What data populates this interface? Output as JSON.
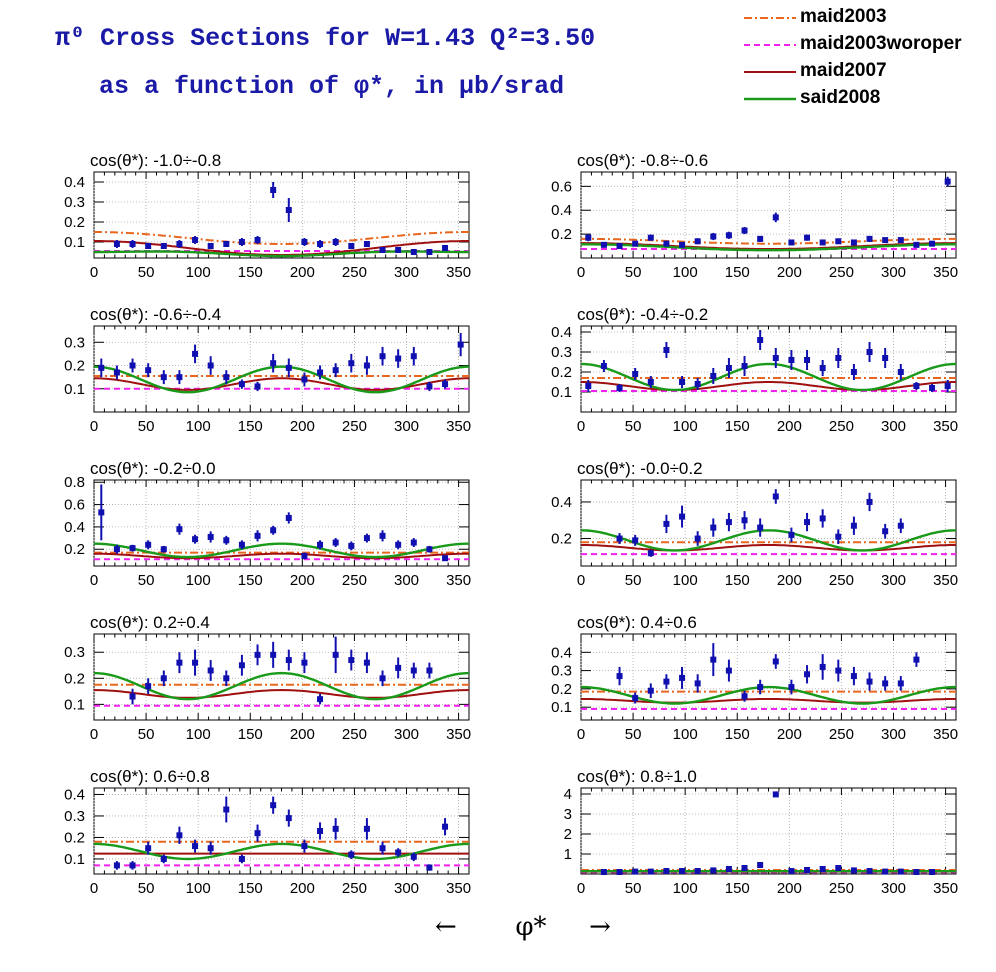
{
  "header": {
    "title_line1": "π⁰ Cross Sections for W=1.43  Q²=3.50",
    "title_line2": "as a function of φ*, in μb/srad"
  },
  "legend": [
    {
      "name": "maid2003",
      "color": "#e8661e",
      "style": "dashdot"
    },
    {
      "name": "maid2003woroper",
      "color": "#ee22ee",
      "style": "dash"
    },
    {
      "name": "maid2007",
      "color": "#a01010",
      "style": "solid"
    },
    {
      "name": "said2008",
      "color": "#1a9a1a",
      "style": "solid"
    }
  ],
  "xaxis": {
    "label": "φ*",
    "left_arrow": "←",
    "right_arrow": "→"
  },
  "chart_data": [
    {
      "type": "scatter",
      "title": "cos(θ*): -1.0÷-0.8",
      "xlim": [
        0,
        360
      ],
      "ylim": [
        0.02,
        0.45
      ],
      "xticks": [
        0,
        50,
        100,
        150,
        200,
        250,
        300,
        350
      ],
      "yticks": [
        0.1,
        0.2,
        0.3,
        0.4
      ],
      "x": [
        22,
        37,
        52,
        67,
        82,
        97,
        112,
        127,
        142,
        157,
        172,
        187,
        202,
        217,
        232,
        247,
        262,
        277,
        292,
        307,
        322,
        337
      ],
      "y": [
        0.09,
        0.09,
        0.08,
        0.08,
        0.09,
        0.11,
        0.08,
        0.09,
        0.1,
        0.11,
        0.36,
        0.26,
        0.1,
        0.09,
        0.1,
        0.08,
        0.09,
        0.06,
        0.06,
        0.05,
        0.05,
        0.07
      ],
      "err": [
        0.02,
        0.02,
        0.015,
        0.015,
        0.02,
        0.02,
        0.015,
        0.015,
        0.02,
        0.02,
        0.04,
        0.06,
        0.02,
        0.02,
        0.02,
        0.015,
        0.015,
        0.01,
        0.01,
        0.01,
        0.01,
        0.015
      ],
      "models": [
        {
          "c": 0.12,
          "a": 0.03,
          "b": 0.0
        },
        {
          "c": 0.055,
          "a": 0.0,
          "b": 0.0
        },
        {
          "c": 0.07,
          "a": 0.035,
          "b": 0.0
        },
        {
          "c": 0.045,
          "a": 0.01,
          "b": -0.005
        }
      ]
    },
    {
      "type": "scatter",
      "title": "cos(θ*): -0.8÷-0.6",
      "xlim": [
        0,
        360
      ],
      "ylim": [
        0.0,
        0.72
      ],
      "xticks": [
        0,
        50,
        100,
        150,
        200,
        250,
        300,
        350
      ],
      "yticks": [
        0.2,
        0.4,
        0.6
      ],
      "x": [
        7,
        22,
        37,
        52,
        67,
        82,
        97,
        112,
        127,
        142,
        157,
        172,
        187,
        202,
        217,
        232,
        247,
        262,
        277,
        292,
        307,
        322,
        337,
        352
      ],
      "y": [
        0.17,
        0.11,
        0.1,
        0.12,
        0.17,
        0.12,
        0.11,
        0.14,
        0.18,
        0.19,
        0.23,
        0.16,
        0.34,
        0.13,
        0.17,
        0.13,
        0.14,
        0.13,
        0.16,
        0.15,
        0.15,
        0.11,
        0.12,
        0.64
      ],
      "err": [
        0.03,
        0.02,
        0.02,
        0.02,
        0.025,
        0.02,
        0.02,
        0.025,
        0.03,
        0.03,
        0.03,
        0.025,
        0.04,
        0.02,
        0.025,
        0.02,
        0.02,
        0.02,
        0.025,
        0.02,
        0.02,
        0.02,
        0.02,
        0.04
      ],
      "models": [
        {
          "c": 0.14,
          "a": 0.02,
          "b": 0.0
        },
        {
          "c": 0.075,
          "a": 0.0,
          "b": 0.0
        },
        {
          "c": 0.1,
          "a": 0.025,
          "b": 0.0
        },
        {
          "c": 0.09,
          "a": 0.025,
          "b": 0.0
        }
      ]
    },
    {
      "type": "scatter",
      "title": "cos(θ*): -0.6÷-0.4",
      "xlim": [
        0,
        360
      ],
      "ylim": [
        0.0,
        0.37
      ],
      "xticks": [
        0,
        50,
        100,
        150,
        200,
        250,
        300,
        350
      ],
      "yticks": [
        0.1,
        0.2,
        0.3
      ],
      "x": [
        7,
        22,
        37,
        52,
        67,
        82,
        97,
        112,
        127,
        142,
        157,
        172,
        187,
        202,
        217,
        232,
        247,
        262,
        277,
        292,
        307,
        322,
        337,
        352
      ],
      "y": [
        0.19,
        0.17,
        0.2,
        0.18,
        0.15,
        0.15,
        0.25,
        0.2,
        0.15,
        0.12,
        0.11,
        0.21,
        0.19,
        0.14,
        0.17,
        0.18,
        0.21,
        0.2,
        0.24,
        0.23,
        0.24,
        0.11,
        0.12,
        0.29
      ],
      "err": [
        0.04,
        0.03,
        0.03,
        0.03,
        0.03,
        0.03,
        0.04,
        0.04,
        0.03,
        0.02,
        0.02,
        0.04,
        0.04,
        0.03,
        0.03,
        0.03,
        0.04,
        0.04,
        0.04,
        0.04,
        0.04,
        0.02,
        0.02,
        0.05
      ],
      "models": [
        {
          "c": 0.155,
          "a": 0.0,
          "b": 0.0
        },
        {
          "c": 0.1,
          "a": 0.0,
          "b": 0.0
        },
        {
          "c": 0.12,
          "a": 0.0,
          "b": 0.025
        },
        {
          "c": 0.14,
          "a": 0.0,
          "b": 0.055
        }
      ]
    },
    {
      "type": "scatter",
      "title": "cos(θ*): -0.4÷-0.2",
      "xlim": [
        0,
        360
      ],
      "ylim": [
        0.0,
        0.43
      ],
      "xticks": [
        0,
        50,
        100,
        150,
        200,
        250,
        300,
        350
      ],
      "yticks": [
        0.1,
        0.2,
        0.3,
        0.4
      ],
      "x": [
        7,
        22,
        37,
        52,
        67,
        82,
        97,
        112,
        127,
        142,
        157,
        172,
        187,
        202,
        217,
        232,
        247,
        262,
        277,
        292,
        307,
        322,
        337,
        352
      ],
      "y": [
        0.13,
        0.23,
        0.12,
        0.19,
        0.15,
        0.31,
        0.15,
        0.14,
        0.18,
        0.22,
        0.23,
        0.36,
        0.27,
        0.26,
        0.26,
        0.22,
        0.27,
        0.2,
        0.3,
        0.27,
        0.2,
        0.13,
        0.12,
        0.13
      ],
      "err": [
        0.03,
        0.03,
        0.02,
        0.03,
        0.03,
        0.04,
        0.03,
        0.03,
        0.04,
        0.05,
        0.05,
        0.05,
        0.05,
        0.05,
        0.05,
        0.04,
        0.05,
        0.04,
        0.05,
        0.05,
        0.04,
        0.02,
        0.02,
        0.03
      ],
      "models": [
        {
          "c": 0.17,
          "a": 0.0,
          "b": 0.0
        },
        {
          "c": 0.105,
          "a": 0.0,
          "b": 0.0
        },
        {
          "c": 0.13,
          "a": 0.0,
          "b": 0.02
        },
        {
          "c": 0.175,
          "a": 0.0,
          "b": 0.065
        }
      ]
    },
    {
      "type": "scatter",
      "title": "cos(θ*): -0.2÷0.0",
      "xlim": [
        0,
        360
      ],
      "ylim": [
        0.05,
        0.82
      ],
      "xticks": [
        0,
        50,
        100,
        150,
        200,
        250,
        300,
        350
      ],
      "yticks": [
        0.2,
        0.4,
        0.6,
        0.8
      ],
      "x": [
        7,
        22,
        37,
        52,
        67,
        82,
        97,
        112,
        127,
        142,
        157,
        172,
        187,
        202,
        217,
        232,
        247,
        262,
        277,
        292,
        307,
        322,
        337
      ],
      "y": [
        0.53,
        0.2,
        0.21,
        0.24,
        0.2,
        0.38,
        0.29,
        0.31,
        0.28,
        0.24,
        0.32,
        0.37,
        0.48,
        0.14,
        0.24,
        0.26,
        0.23,
        0.3,
        0.32,
        0.24,
        0.26,
        0.2,
        0.12
      ],
      "err": [
        0.25,
        0.04,
        0.03,
        0.04,
        0.03,
        0.05,
        0.04,
        0.05,
        0.04,
        0.04,
        0.05,
        0.04,
        0.05,
        0.03,
        0.04,
        0.04,
        0.04,
        0.04,
        0.05,
        0.04,
        0.04,
        0.03,
        0.02
      ],
      "models": [
        {
          "c": 0.17,
          "a": 0.0,
          "b": 0.0
        },
        {
          "c": 0.11,
          "a": 0.0,
          "b": 0.0
        },
        {
          "c": 0.14,
          "a": 0.0,
          "b": 0.02
        },
        {
          "c": 0.19,
          "a": 0.0,
          "b": 0.06
        }
      ]
    },
    {
      "type": "scatter",
      "title": "cos(θ*): -0.0÷0.2",
      "xlim": [
        0,
        360
      ],
      "ylim": [
        0.05,
        0.52
      ],
      "xticks": [
        0,
        50,
        100,
        150,
        200,
        250,
        300,
        350
      ],
      "yticks": [
        0.2,
        0.4
      ],
      "x": [
        37,
        52,
        67,
        82,
        97,
        112,
        127,
        142,
        157,
        172,
        187,
        202,
        217,
        232,
        247,
        262,
        277,
        292,
        307
      ],
      "y": [
        0.2,
        0.19,
        0.12,
        0.28,
        0.32,
        0.2,
        0.26,
        0.29,
        0.3,
        0.26,
        0.43,
        0.22,
        0.29,
        0.31,
        0.21,
        0.27,
        0.4,
        0.24,
        0.27
      ],
      "err": [
        0.03,
        0.03,
        0.02,
        0.05,
        0.06,
        0.04,
        0.05,
        0.05,
        0.05,
        0.05,
        0.04,
        0.04,
        0.05,
        0.05,
        0.04,
        0.05,
        0.05,
        0.04,
        0.04
      ],
      "models": [
        {
          "c": 0.18,
          "a": 0.0,
          "b": 0.0
        },
        {
          "c": 0.115,
          "a": 0.0,
          "b": 0.0
        },
        {
          "c": 0.15,
          "a": 0.0,
          "b": 0.015
        },
        {
          "c": 0.19,
          "a": 0.0,
          "b": 0.055
        }
      ]
    },
    {
      "type": "scatter",
      "title": "cos(θ*): 0.2÷0.4",
      "xlim": [
        0,
        360
      ],
      "ylim": [
        0.04,
        0.37
      ],
      "xticks": [
        0,
        50,
        100,
        150,
        200,
        250,
        300,
        350
      ],
      "yticks": [
        0.1,
        0.2,
        0.3
      ],
      "x": [
        37,
        52,
        67,
        82,
        97,
        112,
        127,
        142,
        157,
        172,
        187,
        202,
        217,
        232,
        247,
        262,
        277,
        292,
        307,
        322
      ],
      "y": [
        0.13,
        0.17,
        0.2,
        0.26,
        0.26,
        0.23,
        0.2,
        0.25,
        0.29,
        0.29,
        0.27,
        0.26,
        0.12,
        0.29,
        0.27,
        0.26,
        0.2,
        0.24,
        0.23,
        0.23
      ],
      "err": [
        0.03,
        0.03,
        0.03,
        0.04,
        0.05,
        0.04,
        0.03,
        0.04,
        0.04,
        0.05,
        0.04,
        0.04,
        0.02,
        0.07,
        0.04,
        0.04,
        0.03,
        0.04,
        0.03,
        0.03
      ],
      "models": [
        {
          "c": 0.175,
          "a": 0.0,
          "b": 0.0
        },
        {
          "c": 0.095,
          "a": 0.0,
          "b": 0.0
        },
        {
          "c": 0.14,
          "a": 0.0,
          "b": 0.015
        },
        {
          "c": 0.17,
          "a": 0.0,
          "b": 0.05
        }
      ]
    },
    {
      "type": "scatter",
      "title": "cos(θ*): 0.4÷0.6",
      "xlim": [
        0,
        360
      ],
      "ylim": [
        0.03,
        0.5
      ],
      "xticks": [
        0,
        50,
        100,
        150,
        200,
        250,
        300,
        350
      ],
      "yticks": [
        0.1,
        0.2,
        0.3,
        0.4
      ],
      "x": [
        37,
        52,
        67,
        82,
        97,
        112,
        127,
        142,
        157,
        172,
        187,
        202,
        217,
        232,
        247,
        262,
        277,
        292,
        307,
        322
      ],
      "y": [
        0.27,
        0.15,
        0.19,
        0.24,
        0.26,
        0.23,
        0.36,
        0.3,
        0.16,
        0.21,
        0.35,
        0.21,
        0.28,
        0.32,
        0.3,
        0.27,
        0.24,
        0.23,
        0.23,
        0.36
      ],
      "err": [
        0.05,
        0.03,
        0.04,
        0.04,
        0.06,
        0.05,
        0.09,
        0.06,
        0.03,
        0.04,
        0.04,
        0.04,
        0.05,
        0.07,
        0.06,
        0.05,
        0.05,
        0.04,
        0.04,
        0.04
      ],
      "models": [
        {
          "c": 0.185,
          "a": 0.0,
          "b": 0.0
        },
        {
          "c": 0.09,
          "a": 0.0,
          "b": 0.0
        },
        {
          "c": 0.135,
          "a": 0.0,
          "b": 0.01
        },
        {
          "c": 0.165,
          "a": 0.0,
          "b": 0.045
        }
      ]
    },
    {
      "type": "scatter",
      "title": "cos(θ*): 0.6÷0.8",
      "xlim": [
        0,
        360
      ],
      "ylim": [
        0.03,
        0.43
      ],
      "xticks": [
        0,
        50,
        100,
        150,
        200,
        250,
        300,
        350
      ],
      "yticks": [
        0.1,
        0.2,
        0.3,
        0.4
      ],
      "x": [
        22,
        37,
        52,
        67,
        82,
        97,
        112,
        127,
        142,
        157,
        172,
        187,
        202,
        217,
        232,
        247,
        262,
        277,
        292,
        307,
        322,
        337
      ],
      "y": [
        0.07,
        0.07,
        0.15,
        0.1,
        0.21,
        0.16,
        0.15,
        0.33,
        0.1,
        0.22,
        0.35,
        0.29,
        0.16,
        0.23,
        0.24,
        0.12,
        0.24,
        0.15,
        0.13,
        0.11,
        0.06,
        0.25
      ],
      "err": [
        0.02,
        0.02,
        0.03,
        0.02,
        0.04,
        0.03,
        0.03,
        0.06,
        0.02,
        0.04,
        0.04,
        0.04,
        0.03,
        0.04,
        0.05,
        0.02,
        0.05,
        0.03,
        0.02,
        0.02,
        0.015,
        0.04
      ],
      "models": [
        {
          "c": 0.18,
          "a": 0.0,
          "b": 0.0
        },
        {
          "c": 0.07,
          "a": 0.0,
          "b": 0.0
        },
        {
          "c": 0.125,
          "a": 0.0,
          "b": 0.0
        },
        {
          "c": 0.135,
          "a": 0.0,
          "b": 0.035
        }
      ]
    },
    {
      "type": "scatter",
      "title": "cos(θ*): 0.8÷1.0",
      "xlim": [
        0,
        360
      ],
      "ylim": [
        0.0,
        4.3
      ],
      "xticks": [
        0,
        50,
        100,
        150,
        200,
        250,
        300,
        350
      ],
      "yticks": [
        1,
        2,
        3,
        4
      ],
      "x": [
        22,
        37,
        52,
        67,
        82,
        97,
        112,
        127,
        142,
        157,
        172,
        187,
        202,
        217,
        232,
        247,
        262,
        277,
        292,
        307,
        322,
        337
      ],
      "y": [
        0.1,
        0.1,
        0.12,
        0.12,
        0.15,
        0.15,
        0.15,
        0.18,
        0.25,
        0.3,
        0.45,
        3.98,
        0.15,
        0.2,
        0.25,
        0.3,
        0.18,
        0.15,
        0.12,
        0.12,
        0.1,
        0.1
      ],
      "err": [
        0.02,
        0.02,
        0.02,
        0.02,
        0.03,
        0.03,
        0.03,
        0.03,
        0.04,
        0.04,
        0.05,
        0.06,
        0.03,
        0.03,
        0.04,
        0.04,
        0.03,
        0.03,
        0.02,
        0.02,
        0.02,
        0.02
      ],
      "models": [
        {
          "c": 0.2,
          "a": 0.0,
          "b": 0.0
        },
        {
          "c": 0.08,
          "a": 0.0,
          "b": 0.0
        },
        {
          "c": 0.12,
          "a": 0.0,
          "b": 0.0
        },
        {
          "c": 0.14,
          "a": 0.0,
          "b": 0.0
        }
      ]
    }
  ]
}
